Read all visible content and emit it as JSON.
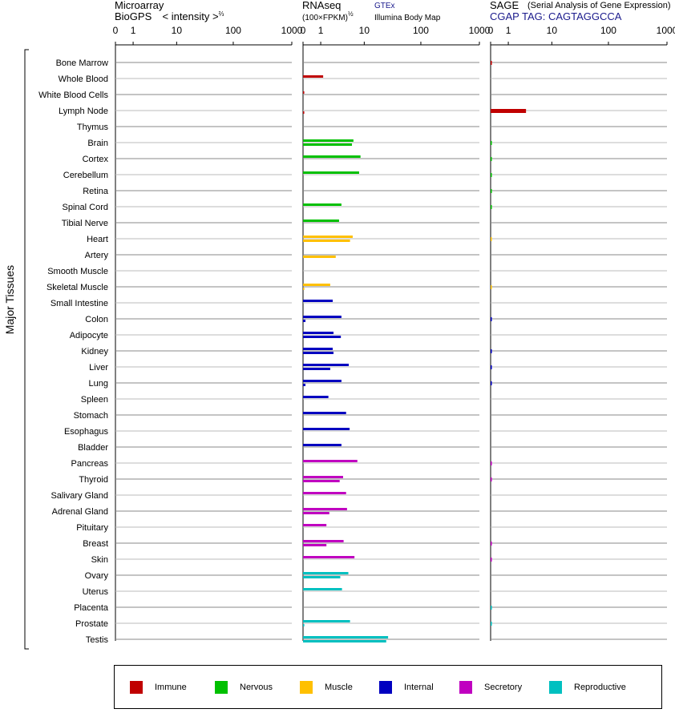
{
  "panels": [
    {
      "title_line1": "Microarray",
      "title_line2": "BioGPS",
      "title_suffix": "< intensity >",
      "title_sup": "⅔"
    },
    {
      "title_line1": "RNAseq",
      "title_line2": "(100×FPKM)",
      "title_sup": "½",
      "link_gtex": "GTEx",
      "link_ibm": "Illumina Body Map"
    },
    {
      "title_line1": "SAGE",
      "title_subtitle": "(Serial Analysis of Gene Expression)",
      "title_line2": "CGAP TAG: CAGTAGGCCA"
    }
  ],
  "y_axis_group_label": "Major Tissues",
  "legend": [
    {
      "label": "Immune",
      "color": "#c00000"
    },
    {
      "label": "Nervous",
      "color": "#00c000"
    },
    {
      "label": "Muscle",
      "color": "#ffc000"
    },
    {
      "label": "Internal",
      "color": "#0000c0"
    },
    {
      "label": "Secretory",
      "color": "#c000c0"
    },
    {
      "label": "Reproductive",
      "color": "#00c0c0"
    }
  ],
  "chart_data": {
    "type": "bar",
    "orientation": "horizontal",
    "x_ticks": [
      "0",
      "1",
      "10",
      "100",
      "1000"
    ],
    "x_tick_values": [
      0,
      1,
      10,
      100,
      1000
    ],
    "xlim": [
      0,
      1000
    ],
    "grid": true,
    "categories": [
      "Bone Marrow",
      "Whole Blood",
      "White Blood Cells",
      "Lymph Node",
      "Thymus",
      "Brain",
      "Cortex",
      "Cerebellum",
      "Retina",
      "Spinal Cord",
      "Tibial Nerve",
      "Heart",
      "Artery",
      "Smooth Muscle",
      "Skeletal Muscle",
      "Small Intestine",
      "Colon",
      "Adipocyte",
      "Kidney",
      "Liver",
      "Lung",
      "Spleen",
      "Stomach",
      "Esophagus",
      "Bladder",
      "Pancreas",
      "Thyroid",
      "Salivary Gland",
      "Adrenal Gland",
      "Pituitary",
      "Breast",
      "Skin",
      "Ovary",
      "Uterus",
      "Placenta",
      "Prostate",
      "Testis"
    ],
    "category_groups": [
      "Immune",
      "Immune",
      "Immune",
      "Immune",
      "Immune",
      "Nervous",
      "Nervous",
      "Nervous",
      "Nervous",
      "Nervous",
      "Nervous",
      "Muscle",
      "Muscle",
      "Muscle",
      "Muscle",
      "Internal",
      "Internal",
      "Internal",
      "Internal",
      "Internal",
      "Internal",
      "Internal",
      "Internal",
      "Internal",
      "Internal",
      "Secretory",
      "Secretory",
      "Secretory",
      "Secretory",
      "Secretory",
      "Secretory",
      "Secretory",
      "Reproductive",
      "Reproductive",
      "Reproductive",
      "Reproductive",
      "Reproductive"
    ],
    "series": [
      {
        "name": "GTEx",
        "panel": "RNAseq",
        "values": [
          null,
          1.2,
          0.05,
          null,
          null,
          6.2,
          8.5,
          8.0,
          null,
          3.5,
          3.1,
          6.0,
          null,
          null,
          1.9,
          2.2,
          3.5,
          2.3,
          2.2,
          5.0,
          3.5,
          1.7,
          4.4,
          5.2,
          3.5,
          7.4,
          3.8,
          4.4,
          4.6,
          1.5,
          3.9,
          6.5,
          4.9,
          3.6,
          null,
          5.3,
          27.0
        ]
      },
      {
        "name": "Illumina Body Map",
        "panel": "RNAseq",
        "values": [
          null,
          null,
          null,
          0.05,
          null,
          5.8,
          null,
          null,
          null,
          null,
          null,
          5.3,
          2.6,
          null,
          0.05,
          null,
          0.1,
          3.4,
          2.3,
          1.9,
          0.1,
          null,
          null,
          null,
          null,
          null,
          3.2,
          null,
          1.8,
          null,
          1.5,
          null,
          3.3,
          null,
          null,
          0.05,
          25.0
        ]
      },
      {
        "name": "SAGE",
        "panel": "SAGE",
        "values": [
          0.05,
          null,
          null,
          3.0,
          null,
          0.05,
          0.05,
          0.05,
          0.05,
          0.05,
          null,
          0.03,
          null,
          null,
          0.03,
          null,
          0.05,
          null,
          0.05,
          0.05,
          0.05,
          null,
          null,
          null,
          null,
          0.05,
          0.05,
          null,
          null,
          null,
          0.05,
          0.05,
          null,
          null,
          0.05,
          0.05,
          null
        ]
      }
    ]
  }
}
